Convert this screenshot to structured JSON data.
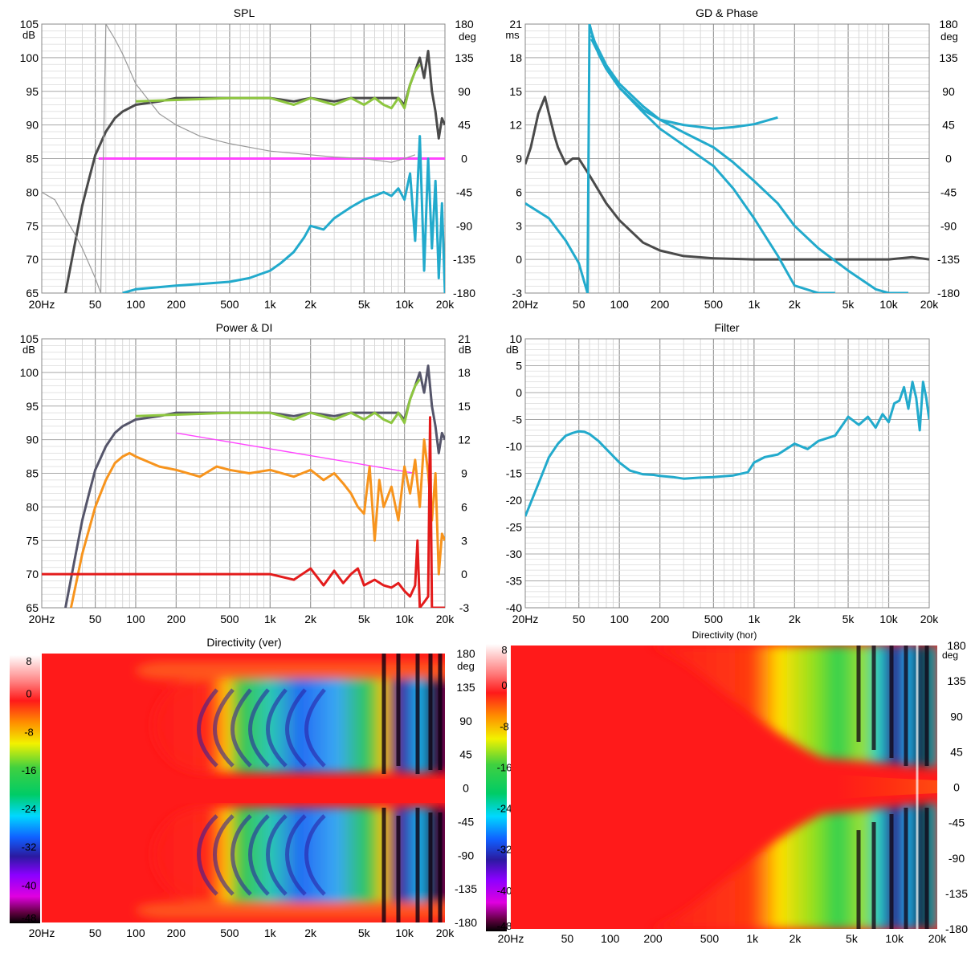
{
  "freq_ticks": [
    "20Hz",
    "50",
    "100",
    "200",
    "500",
    "1k",
    "2k",
    "5k",
    "10k",
    "20k"
  ],
  "chart_data": [
    {
      "id": "spl",
      "type": "line",
      "title": "SPL",
      "y_unit": "dB",
      "y2_unit": "deg",
      "xscale": "log",
      "xlim": [
        20,
        20000
      ],
      "ylim": [
        65,
        105
      ],
      "y2lim": [
        -180,
        180
      ],
      "y_ticks": [
        105,
        100,
        95,
        90,
        85,
        80,
        75,
        70,
        65
      ],
      "y2_ticks": [
        180,
        135,
        90,
        45,
        0,
        -45,
        -90,
        -135,
        -180
      ],
      "grid": true,
      "series": [
        {
          "color": "#4a4a4a",
          "axis": "left",
          "x": [
            30,
            35,
            40,
            45,
            50,
            60,
            70,
            80,
            100,
            150,
            200,
            300,
            500,
            1000,
            1500,
            2000,
            3000,
            4000,
            5000,
            7000,
            9000,
            10000,
            11000,
            12000,
            13000,
            14000,
            15000,
            16000,
            17000,
            18000,
            19000,
            20000
          ],
          "y": [
            65,
            72,
            78,
            82,
            85.5,
            89,
            91,
            92,
            93,
            93.5,
            94,
            94,
            94,
            94,
            93.5,
            94,
            93.5,
            94,
            94,
            94,
            94,
            93,
            96,
            98,
            100,
            97,
            101,
            95,
            92,
            88,
            91,
            90
          ]
        },
        {
          "color": "#8dc63f",
          "axis": "left",
          "x": [
            100,
            500,
            1000,
            1500,
            2000,
            3000,
            4000,
            5000,
            6000,
            7000,
            8000,
            9000,
            10000,
            11000,
            12000,
            13000
          ],
          "y": [
            93.5,
            94,
            94,
            93,
            94,
            93,
            94,
            93,
            94,
            93,
            92.5,
            94,
            92.5,
            96,
            98,
            99
          ]
        },
        {
          "color": "#ff44ff",
          "axis": "left",
          "x": [
            53,
            20000
          ],
          "y": [
            85,
            85
          ]
        },
        {
          "color": "#9a9a9a",
          "axis": "right",
          "x": [
            20,
            25,
            30,
            35,
            40,
            50,
            55,
            60,
            70,
            80,
            100,
            150,
            200,
            300,
            500,
            1000,
            2000,
            3000,
            5000,
            8000,
            10000,
            12000
          ],
          "y": [
            -45,
            -55,
            -80,
            -100,
            -120,
            -160,
            -180,
            180,
            160,
            140,
            100,
            60,
            45,
            30,
            20,
            10,
            5,
            2,
            0,
            -5,
            0,
            5
          ]
        },
        {
          "color": "#22aacc",
          "axis": "right",
          "x": [
            80,
            100,
            150,
            200,
            300,
            500,
            700,
            1000,
            1200,
            1500,
            1800,
            2000,
            2500,
            3000,
            4000,
            5000,
            6000,
            7000,
            8000,
            9000,
            10000,
            11000,
            12000,
            13000,
            14000,
            15000,
            16000,
            17000,
            18000,
            19000,
            20000
          ],
          "y": [
            -180,
            -175,
            -172,
            -170,
            -168,
            -165,
            -160,
            -150,
            -140,
            -125,
            -105,
            -90,
            -95,
            -80,
            -65,
            -55,
            -50,
            -45,
            -50,
            -40,
            -55,
            -20,
            -110,
            30,
            -150,
            0,
            -120,
            -30,
            -160,
            -60,
            -180
          ]
        }
      ]
    },
    {
      "id": "gd_phase",
      "type": "line",
      "title": "GD & Phase",
      "y_unit": "ms",
      "y2_unit": "deg",
      "xscale": "log",
      "xlim": [
        20,
        20000
      ],
      "ylim": [
        -3,
        21
      ],
      "y2lim": [
        -180,
        180
      ],
      "y_ticks": [
        21,
        18,
        15,
        12,
        9,
        6,
        3,
        0,
        -3
      ],
      "y2_ticks": [
        180,
        135,
        90,
        45,
        0,
        -45,
        -90,
        -135,
        -180
      ],
      "grid": true,
      "series": [
        {
          "color": "#4a4a4a",
          "axis": "left",
          "x": [
            20,
            22,
            25,
            28,
            30,
            33,
            35,
            40,
            45,
            50,
            60,
            80,
            100,
            150,
            200,
            300,
            500,
            1000,
            2000,
            5000,
            10000,
            15000,
            20000
          ],
          "y": [
            8.5,
            10,
            13,
            14.5,
            13,
            11,
            10,
            8.5,
            9,
            9,
            7.5,
            5,
            3.5,
            1.5,
            0.8,
            0.3,
            0.1,
            0,
            0,
            0,
            0,
            0.2,
            0
          ]
        },
        {
          "color": "#22aacc",
          "axis": "right",
          "x": [
            20,
            30,
            40,
            50,
            58,
            60,
            62,
            70,
            80,
            100,
            150,
            200,
            300,
            500,
            700,
            1000,
            1500
          ],
          "y": [
            -60,
            -80,
            -110,
            -140,
            -180,
            180,
            170,
            140,
            120,
            95,
            65,
            52,
            45,
            40,
            42,
            46,
            55
          ]
        },
        {
          "color": "#22aacc",
          "axis": "right",
          "x": [
            62,
            80,
            100,
            150,
            200,
            300,
            500,
            700,
            1000,
            1500,
            2000,
            3000,
            5000,
            8000,
            10000,
            14000
          ],
          "y": [
            165,
            125,
            100,
            70,
            52,
            35,
            15,
            -5,
            -30,
            -60,
            -90,
            -120,
            -150,
            -175,
            -180,
            -180
          ]
        },
        {
          "color": "#22aacc",
          "axis": "right",
          "x": [
            62,
            80,
            100,
            150,
            200,
            300,
            500,
            700,
            1000,
            1500,
            2000,
            3000,
            4000
          ],
          "y": [
            160,
            120,
            95,
            62,
            40,
            18,
            -10,
            -40,
            -80,
            -130,
            -170,
            -180,
            -180
          ]
        }
      ]
    },
    {
      "id": "power_di",
      "type": "line",
      "title": "Power & DI",
      "y_unit": "dB",
      "y2_unit": "dB",
      "xscale": "log",
      "xlim": [
        20,
        20000
      ],
      "ylim": [
        65,
        105
      ],
      "y2lim": [
        -3,
        21
      ],
      "y_ticks": [
        105,
        100,
        95,
        90,
        85,
        80,
        75,
        70,
        65
      ],
      "y2_ticks": [
        21,
        18,
        15,
        12,
        9,
        6,
        3,
        0,
        -3
      ],
      "grid": true,
      "series": [
        {
          "color": "#55556a",
          "axis": "left",
          "x": [
            30,
            35,
            40,
            45,
            50,
            60,
            70,
            80,
            100,
            150,
            200,
            300,
            500,
            1000,
            1500,
            2000,
            3000,
            4000,
            5000,
            7000,
            9000,
            10000,
            11000,
            12000,
            13000,
            14000,
            15000,
            16000,
            17000,
            18000,
            19000,
            20000
          ],
          "y": [
            65,
            72,
            78,
            82,
            85.5,
            89,
            91,
            92,
            93,
            93.5,
            94,
            94,
            94,
            94,
            93.5,
            94,
            93.5,
            94,
            94,
            94,
            94,
            93,
            96,
            98,
            100,
            97,
            101,
            95,
            92,
            88,
            91,
            90
          ]
        },
        {
          "color": "#8dc63f",
          "axis": "left",
          "x": [
            100,
            500,
            1000,
            1500,
            2000,
            3000,
            4000,
            5000,
            6000,
            7000,
            8000,
            9000,
            10000,
            11000,
            12000,
            13000
          ],
          "y": [
            93.5,
            94,
            94,
            93,
            94,
            93,
            94,
            93,
            94,
            93,
            92.5,
            94,
            92.5,
            96,
            98,
            99
          ]
        },
        {
          "color": "#ff44ff",
          "axis": "left",
          "x": [
            200,
            12000
          ],
          "y": [
            91,
            85
          ]
        },
        {
          "color": "#f7941d",
          "axis": "left",
          "x": [
            33,
            40,
            50,
            60,
            70,
            80,
            90,
            100,
            150,
            200,
            300,
            400,
            500,
            700,
            1000,
            1500,
            2000,
            2500,
            3000,
            3500,
            4000,
            4500,
            5000,
            5500,
            6000,
            6500,
            7000,
            8000,
            9000,
            10000,
            11000,
            12000,
            13000,
            14000,
            15000,
            16000,
            17000,
            18000,
            19000,
            20000
          ],
          "y": [
            65,
            73,
            80,
            84,
            86.5,
            87.5,
            88,
            87.5,
            86,
            85.5,
            84.5,
            86,
            85.5,
            85,
            85.5,
            84.5,
            85.5,
            84,
            85,
            83.5,
            82,
            80,
            79,
            86,
            75,
            84,
            80,
            83,
            78,
            86,
            82,
            87,
            80,
            90,
            85,
            78,
            85,
            70,
            76,
            75
          ]
        },
        {
          "color": "#e31b1b",
          "axis": "right",
          "x": [
            20,
            50,
            100,
            200,
            500,
            1000,
            1500,
            2000,
            2500,
            3000,
            3500,
            4000,
            4500,
            5000,
            6000,
            7000,
            8000,
            9000,
            10000,
            11000,
            12000,
            12500,
            13000,
            14000,
            15000,
            15500,
            16000,
            17000,
            20000
          ],
          "y": [
            0,
            0,
            0,
            0,
            0,
            0,
            -0.5,
            0.5,
            -1,
            0.3,
            -0.8,
            0,
            0.5,
            -1,
            -0.5,
            -1,
            -1.2,
            -0.8,
            -1.5,
            -2,
            -1,
            3,
            -3,
            -2.5,
            -2,
            14,
            -3,
            -3,
            -3
          ]
        }
      ]
    },
    {
      "id": "filter",
      "type": "line",
      "title": "Filter",
      "y_unit": "dB",
      "xscale": "log",
      "xlim": [
        20,
        20000
      ],
      "ylim": [
        -40,
        10
      ],
      "y_ticks": [
        10,
        5,
        0,
        -5,
        -10,
        -15,
        -20,
        -25,
        -30,
        -35,
        -40
      ],
      "grid": true,
      "series": [
        {
          "color": "#22aacc",
          "axis": "left",
          "x": [
            20,
            25,
            30,
            35,
            40,
            45,
            50,
            55,
            60,
            70,
            80,
            100,
            120,
            150,
            180,
            200,
            250,
            300,
            400,
            500,
            700,
            900,
            1000,
            1200,
            1500,
            2000,
            2500,
            3000,
            4000,
            5000,
            6000,
            7000,
            8000,
            9000,
            10000,
            11000,
            12000,
            13000,
            14000,
            15000,
            16000,
            17000,
            18000,
            19000,
            20000
          ],
          "y": [
            -23,
            -17,
            -12,
            -9.5,
            -8,
            -7.5,
            -7.2,
            -7.3,
            -7.7,
            -9,
            -10.5,
            -13,
            -14.5,
            -15.2,
            -15.3,
            -15.5,
            -15.7,
            -16,
            -15.8,
            -15.7,
            -15.4,
            -14.8,
            -13,
            -12,
            -11.5,
            -9.5,
            -10.5,
            -9,
            -8,
            -4.5,
            -6,
            -4.5,
            -6.5,
            -4,
            -5.5,
            -2,
            -1.5,
            1,
            -3,
            2,
            -1,
            -7,
            2,
            -1,
            -5
          ]
        }
      ]
    },
    {
      "id": "dir_ver",
      "type": "heatmap",
      "title": "Directivity (ver)",
      "z_unit": "dB",
      "y2_unit": "deg",
      "xscale": "log",
      "xlim": [
        20,
        20000
      ],
      "y2lim": [
        -180,
        180
      ],
      "scale_ticks": [
        8,
        0,
        -8,
        -16,
        -24,
        -32,
        -40,
        -48
      ],
      "y2_ticks": [
        180,
        135,
        90,
        45,
        0,
        -45,
        -90,
        -135,
        -180
      ]
    },
    {
      "id": "dir_hor",
      "type": "heatmap",
      "title": "Directivity (hor)",
      "z_unit": "dB",
      "y2_unit": "deg",
      "xscale": "log",
      "xlim": [
        20,
        20000
      ],
      "y2lim": [
        -180,
        180
      ],
      "scale_ticks": [
        8,
        0,
        -8,
        -16,
        -24,
        -32,
        -40,
        -48
      ],
      "y2_ticks": [
        180,
        135,
        90,
        45,
        0,
        -45,
        -90,
        -135,
        -180
      ]
    }
  ]
}
